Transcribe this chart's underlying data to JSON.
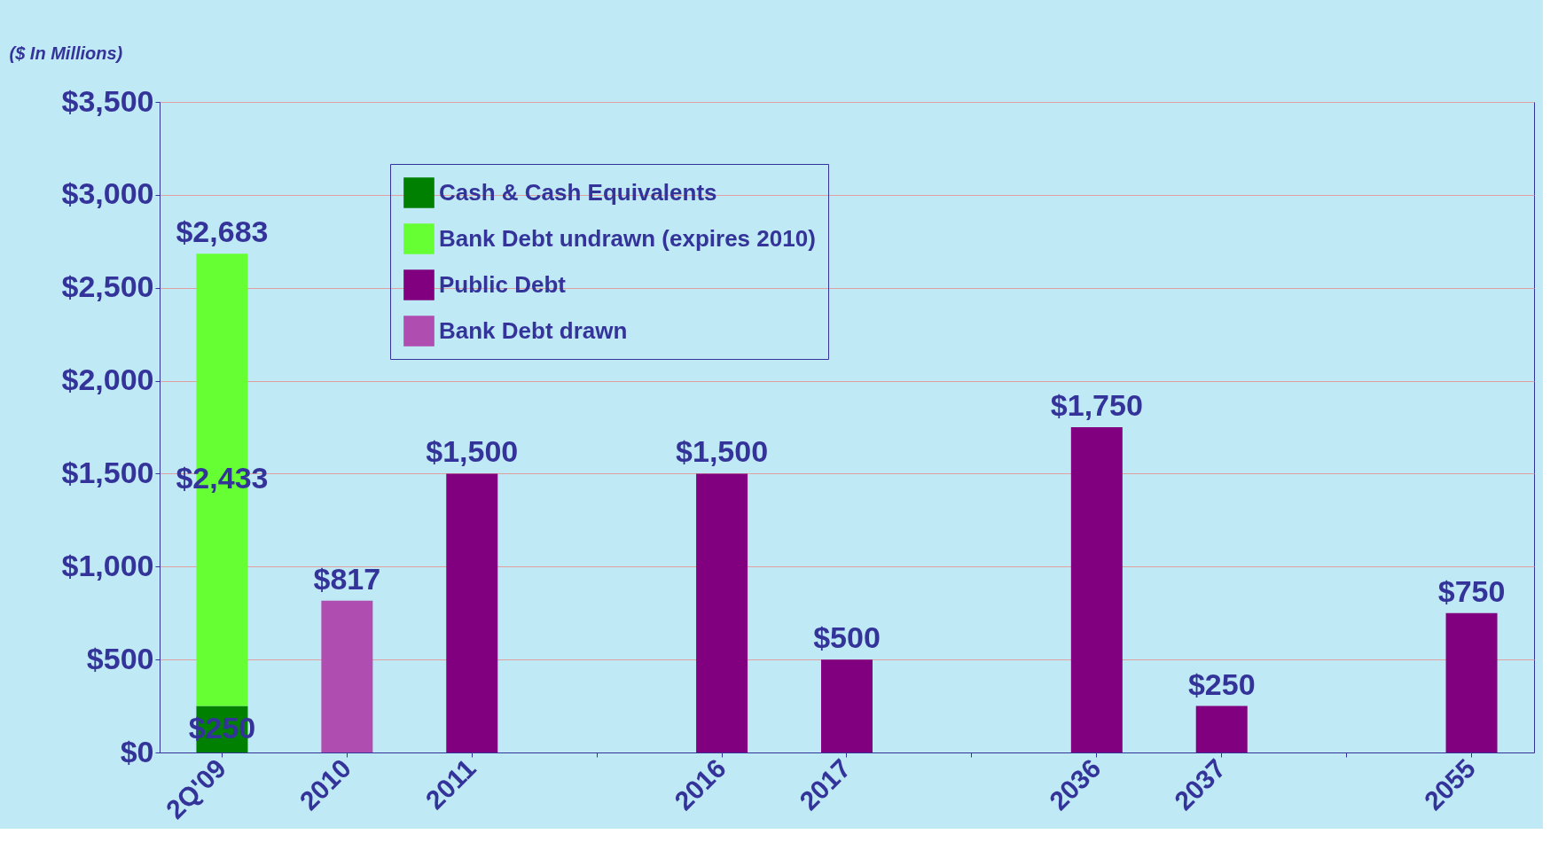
{
  "chart_data": {
    "type": "bar",
    "stacked": true,
    "ylabel": "($ In Millions)",
    "categories": [
      "2Q'09",
      "2010",
      "2011",
      null,
      "2016",
      "2017",
      null,
      "2036",
      "2037",
      null,
      "2055"
    ],
    "series": [
      {
        "name": "Cash & Cash Equivalents",
        "color": "#008000",
        "values": [
          250,
          null,
          null,
          null,
          null,
          null,
          null,
          null,
          null,
          null,
          null
        ],
        "value_labels": [
          "$250",
          null,
          null,
          null,
          null,
          null,
          null,
          null,
          null,
          null,
          null
        ]
      },
      {
        "name": "Bank Debt undrawn (expires 2010)",
        "color": "#66ff33",
        "values": [
          2433,
          null,
          null,
          null,
          null,
          null,
          null,
          null,
          null,
          null,
          null
        ],
        "value_labels": [
          "$2,433",
          null,
          null,
          null,
          null,
          null,
          null,
          null,
          null,
          null,
          null
        ]
      },
      {
        "name": "Public Debt",
        "color": "#800080",
        "values": [
          null,
          null,
          1500,
          null,
          1500,
          500,
          null,
          1750,
          250,
          null,
          750
        ],
        "value_labels": [
          null,
          null,
          "$1,500",
          null,
          "$1,500",
          "$500",
          null,
          "$1,750",
          "$250",
          null,
          "$750"
        ]
      },
      {
        "name": "Bank Debt drawn",
        "color": "#b04db0",
        "values": [
          null,
          817,
          null,
          null,
          null,
          null,
          null,
          null,
          null,
          null,
          null
        ],
        "value_labels": [
          null,
          "$817",
          null,
          null,
          null,
          null,
          null,
          null,
          null,
          null,
          null
        ]
      }
    ],
    "totals": [
      "$2,683",
      null,
      null,
      null,
      null,
      null,
      null,
      null,
      null,
      null,
      null
    ],
    "ylim": [
      0,
      3500
    ],
    "yticks": [
      {
        "value": 0,
        "label": "$0"
      },
      {
        "value": 500,
        "label": "$500"
      },
      {
        "value": 1000,
        "label": "$1,000"
      },
      {
        "value": 1500,
        "label": "$1,500"
      },
      {
        "value": 2000,
        "label": "$2,000"
      },
      {
        "value": 2500,
        "label": "$2,500"
      },
      {
        "value": 3000,
        "label": "$3,000"
      },
      {
        "value": 3500,
        "label": "$3,500"
      }
    ],
    "grid": "y",
    "legend": "top left"
  }
}
